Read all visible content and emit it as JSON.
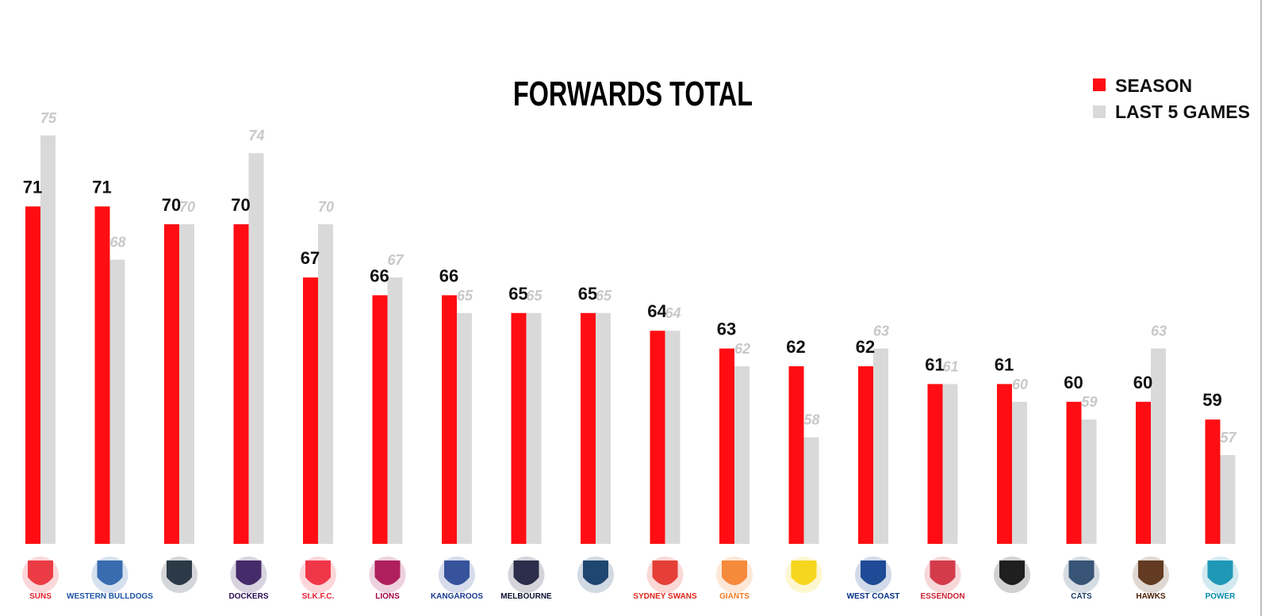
{
  "chart_data": {
    "type": "bar",
    "title": "FORWARDS TOTAL",
    "categories": [
      "Gold Coast Suns",
      "Western Bulldogs",
      "Carlton",
      "Fremantle Dockers",
      "St Kilda",
      "Brisbane Lions",
      "Kangaroos",
      "Melbourne",
      "Adelaide Crows",
      "Sydney Swans",
      "GWS Giants",
      "Richmond",
      "West Coast",
      "Essendon",
      "Collingwood",
      "Geelong Cats",
      "Hawks",
      "Port Adelaide Power"
    ],
    "series": [
      {
        "name": "SEASON",
        "color": "#ff0d12",
        "values": [
          71,
          71,
          70,
          70,
          67,
          66,
          66,
          65,
          65,
          64,
          63,
          62,
          62,
          61,
          61,
          60,
          60,
          59
        ]
      },
      {
        "name": "LAST 5 GAMES",
        "color": "#d9d9d9",
        "values": [
          75,
          68,
          70,
          74,
          70,
          67,
          65,
          65,
          65,
          64,
          62,
          58,
          63,
          61,
          60,
          59,
          63,
          57
        ]
      }
    ],
    "ylim": [
      52,
      77
    ],
    "grid": false,
    "legend_position": "top-right"
  },
  "logos": [
    {
      "icon": "gold-coast-suns-logo-icon",
      "text": "SUNS",
      "color": "#e8202a"
    },
    {
      "icon": "western-bulldogs-logo-icon",
      "text": "WESTERN BULLDOGS",
      "color": "#1c56a5"
    },
    {
      "icon": "carlton-logo-icon",
      "text": "",
      "color": "#0e1e2d"
    },
    {
      "icon": "fremantle-dockers-logo-icon",
      "text": "DOCKERS",
      "color": "#2a0d54"
    },
    {
      "icon": "st-kilda-logo-icon",
      "text": "St.K.F.C.",
      "color": "#ed1b2f"
    },
    {
      "icon": "brisbane-lions-logo-icon",
      "text": "LIONS",
      "color": "#a30046"
    },
    {
      "icon": "kangaroos-logo-icon",
      "text": "KANGAROOS",
      "color": "#1a3b8e"
    },
    {
      "icon": "melbourne-logo-icon",
      "text": "MELBOURNE",
      "color": "#0f1131"
    },
    {
      "icon": "adelaide-crows-logo-icon",
      "text": "",
      "color": "#002b5c"
    },
    {
      "icon": "sydney-swans-logo-icon",
      "text": "SYDNEY SWANS",
      "color": "#e1251b"
    },
    {
      "icon": "gws-giants-logo-icon",
      "text": "GIANTS",
      "color": "#f47920"
    },
    {
      "icon": "richmond-logo-icon",
      "text": "",
      "color": "#f5d000"
    },
    {
      "icon": "west-coast-logo-icon",
      "text": "WEST COAST",
      "color": "#003087"
    },
    {
      "icon": "essendon-logo-icon",
      "text": "ESSENDON",
      "color": "#cc2031"
    },
    {
      "icon": "collingwood-logo-icon",
      "text": "",
      "color": "#000000"
    },
    {
      "icon": "geelong-cats-logo-icon",
      "text": "CATS",
      "color": "#1c3c63"
    },
    {
      "icon": "hawthorn-hawks-logo-icon",
      "text": "HAWKS",
      "color": "#4d2004"
    },
    {
      "icon": "port-adelaide-power-logo-icon",
      "text": "POWER",
      "color": "#008aab"
    }
  ]
}
